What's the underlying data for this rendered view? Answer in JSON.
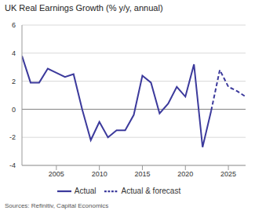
{
  "chart_data": {
    "type": "line",
    "title": "UK Real Earnings Growth (% y/y, annual)",
    "source": "Sources: Refinitiv, Capital Economics",
    "x": [
      2001,
      2002,
      2003,
      2004,
      2005,
      2006,
      2007,
      2008,
      2009,
      2010,
      2011,
      2012,
      2013,
      2014,
      2015,
      2016,
      2017,
      2018,
      2019,
      2020,
      2021,
      2022,
      2023,
      2024,
      2025,
      2026,
      2027
    ],
    "series": [
      {
        "name": "Actual",
        "color": "#3c3a9c",
        "line_style": "solid",
        "values": [
          3.8,
          1.9,
          1.9,
          2.9,
          2.6,
          2.3,
          2.5,
          0.0,
          -2.2,
          -0.9,
          -2.0,
          -1.5,
          -1.5,
          -0.4,
          2.4,
          1.9,
          -0.3,
          0.4,
          1.6,
          0.9,
          3.2,
          -2.7,
          -0.1,
          null,
          null,
          null,
          null
        ]
      },
      {
        "name": "Actual & forecast",
        "color": "#3c3a9c",
        "line_style": "dashed",
        "values": [
          null,
          null,
          null,
          null,
          null,
          null,
          null,
          null,
          null,
          null,
          null,
          null,
          null,
          null,
          null,
          null,
          null,
          null,
          null,
          null,
          null,
          null,
          -0.1,
          2.8,
          1.6,
          1.3,
          0.9
        ]
      }
    ],
    "xlim": [
      2001,
      2027
    ],
    "xticks": [
      2005,
      2010,
      2015,
      2020,
      2025
    ],
    "ylim": [
      -4,
      6
    ],
    "yticks": [
      -4,
      -2,
      0,
      2,
      4,
      6
    ],
    "grid": true,
    "legend": "bottom"
  }
}
